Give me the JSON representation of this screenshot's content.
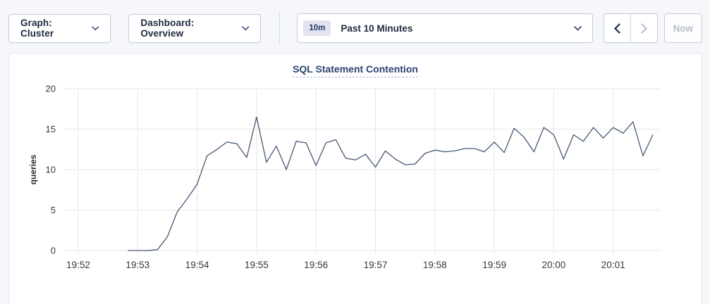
{
  "toolbar": {
    "graph_dropdown_label": "Graph: Cluster",
    "dashboard_dropdown_label": "Dashboard: Overview",
    "time_badge": "10m",
    "time_label": "Past 10 Minutes",
    "now_label": "Now"
  },
  "colors": {
    "line": "#475872",
    "grid": "#e7e7e7",
    "tick_text": "#33383f",
    "axis_label_text": "#24292f",
    "title_text": "#2c4170",
    "chevron": "#2c3e6b",
    "arrow_enabled": "#1b2b45",
    "arrow_disabled": "#b6bdcc"
  },
  "chart_data": {
    "type": "line",
    "title": "SQL Statement Contention",
    "ylabel": "queries",
    "xlabel": "",
    "ylim": [
      0,
      20
    ],
    "yticks": [
      0,
      5,
      10,
      15,
      20
    ],
    "grid": true,
    "legend": "none",
    "xticks": [
      {
        "label": "19:52",
        "minute_offset": 0
      },
      {
        "label": "19:53",
        "minute_offset": 1
      },
      {
        "label": "19:54",
        "minute_offset": 2
      },
      {
        "label": "19:55",
        "minute_offset": 3
      },
      {
        "label": "19:56",
        "minute_offset": 4
      },
      {
        "label": "19:57",
        "minute_offset": 5
      },
      {
        "label": "19:58",
        "minute_offset": 6
      },
      {
        "label": "19:59",
        "minute_offset": 7
      },
      {
        "label": "20:00",
        "minute_offset": 8
      },
      {
        "label": "20:01",
        "minute_offset": 9
      }
    ],
    "x_axis_start": "19:52",
    "series": [
      {
        "name": "SQL Statement Contention",
        "start_offset_seconds": 50,
        "interval_seconds": 10,
        "values": [
          0,
          0,
          0,
          0.1,
          1.7,
          4.8,
          6.4,
          8.2,
          11.7,
          12.5,
          13.4,
          13.2,
          11.5,
          16.5,
          10.9,
          12.9,
          10.0,
          13.5,
          13.3,
          10.5,
          13.3,
          13.7,
          11.4,
          11.2,
          11.9,
          10.3,
          12.3,
          11.3,
          10.6,
          10.7,
          12.0,
          12.4,
          12.2,
          12.3,
          12.6,
          12.6,
          12.2,
          13.4,
          12.1,
          15.1,
          14.0,
          12.2,
          15.2,
          14.3,
          11.3,
          14.3,
          13.5,
          15.2,
          13.9,
          15.2,
          14.5,
          15.9,
          11.7,
          14.3
        ]
      }
    ]
  }
}
